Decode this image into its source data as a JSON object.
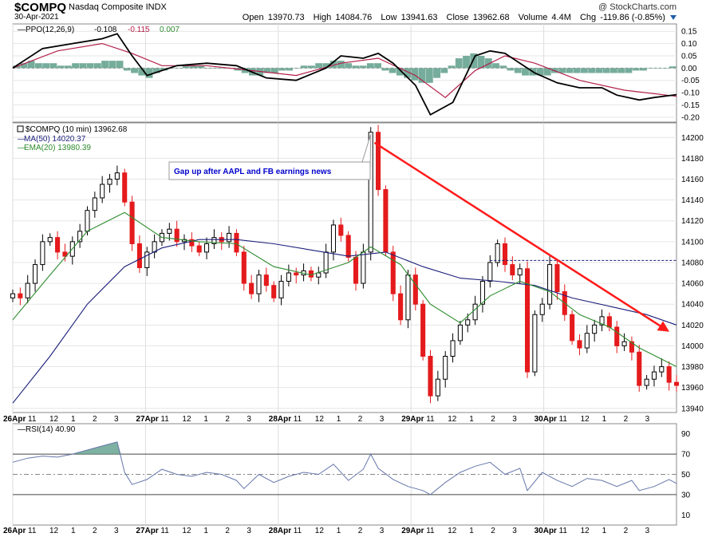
{
  "header": {
    "symbol": "$COMPQ",
    "name": "Nasdaq Composite INDX",
    "date": "30-Apr-2021",
    "credit": "@ StockCharts.com",
    "open_label": "Open",
    "open": "13970.73",
    "high_label": "High",
    "high": "14084.76",
    "low_label": "Low",
    "low": "13941.63",
    "close_label": "Close",
    "close": "13962.68",
    "volume_label": "Volume",
    "volume": "4.4M",
    "chg_label": "Chg",
    "chg": "-119.86 (-0.85%)"
  },
  "colors": {
    "up": "#000000",
    "down": "#e41a1c",
    "ma50": "#1b1f7a",
    "ema20": "#2e8b2e",
    "ppo": "#000000",
    "signal": "#b3204a",
    "hist": "#5e9e8a",
    "trend": "#ff1a1a",
    "rsi": "#6677aa",
    "rsi_fill": "#5e9e8a",
    "annotation": "#0000cc"
  },
  "chart_data": [
    {
      "type": "candlestick",
      "title": "$COMPQ (10 min) 13962.68",
      "ylim": [
        13936,
        14214
      ],
      "yticks": [
        13940,
        13960,
        13980,
        14000,
        14020,
        14040,
        14060,
        14080,
        14100,
        14120,
        14140,
        14160,
        14180,
        14200
      ],
      "y_axis": "right",
      "grid": true,
      "legend": "top-left",
      "legend_entries": [
        {
          "name": "$COMPQ (10 min) 13962.68",
          "color": "#000000"
        },
        {
          "name": "MA(50) 14020.37",
          "color": "#1b1f7a"
        },
        {
          "name": "EMA(20) 13980.39",
          "color": "#2e8b2e"
        }
      ],
      "annotation": "Gap up after AAPL and FB earnings news",
      "resistance_level": 14082,
      "x_tick_labels": [
        "26Apr",
        "11",
        "12",
        "1",
        "2",
        "3",
        "27Apr",
        "11",
        "12",
        "1",
        "2",
        "3",
        "28Apr",
        "11",
        "12",
        "1",
        "2",
        "3",
        "29Apr",
        "11",
        "12",
        "1",
        "2",
        "3",
        "30Apr",
        "11",
        "12",
        "1",
        "2",
        "3"
      ],
      "close_path": [
        {
          "t": 0,
          "v": 14050
        },
        {
          "t": 1,
          "v": 14046
        },
        {
          "t": 2,
          "v": 14060
        },
        {
          "t": 3,
          "v": 14078
        },
        {
          "t": 4,
          "v": 14100
        },
        {
          "t": 5,
          "v": 14104
        },
        {
          "t": 6,
          "v": 14090
        },
        {
          "t": 7,
          "v": 14086
        },
        {
          "t": 8,
          "v": 14100
        },
        {
          "t": 9,
          "v": 14110
        },
        {
          "t": 10,
          "v": 14130
        },
        {
          "t": 11,
          "v": 14142
        },
        {
          "t": 12,
          "v": 14155
        },
        {
          "t": 13,
          "v": 14160
        },
        {
          "t": 14,
          "v": 14166
        },
        {
          "t": 15,
          "v": 14138
        },
        {
          "t": 16,
          "v": 14098
        },
        {
          "t": 17,
          "v": 14075
        },
        {
          "t": 18,
          "v": 14090
        },
        {
          "t": 19,
          "v": 14100
        },
        {
          "t": 20,
          "v": 14108
        },
        {
          "t": 21,
          "v": 14112
        },
        {
          "t": 22,
          "v": 14100
        },
        {
          "t": 23,
          "v": 14102
        },
        {
          "t": 24,
          "v": 14096
        },
        {
          "t": 25,
          "v": 14090
        },
        {
          "t": 26,
          "v": 14098
        },
        {
          "t": 27,
          "v": 14104
        },
        {
          "t": 28,
          "v": 14100
        },
        {
          "t": 29,
          "v": 14108
        },
        {
          "t": 30,
          "v": 14090
        },
        {
          "t": 31,
          "v": 14060
        },
        {
          "t": 32,
          "v": 14050
        },
        {
          "t": 33,
          "v": 14068
        },
        {
          "t": 34,
          "v": 14058
        },
        {
          "t": 35,
          "v": 14046
        },
        {
          "t": 36,
          "v": 14062
        },
        {
          "t": 37,
          "v": 14070
        },
        {
          "t": 38,
          "v": 14068
        },
        {
          "t": 39,
          "v": 14072
        },
        {
          "t": 40,
          "v": 14066
        },
        {
          "t": 41,
          "v": 14070
        },
        {
          "t": 42,
          "v": 14090
        },
        {
          "t": 43,
          "v": 14116
        },
        {
          "t": 44,
          "v": 14106
        },
        {
          "t": 45,
          "v": 14085
        },
        {
          "t": 46,
          "v": 14060
        },
        {
          "t": 47,
          "v": 14090
        },
        {
          "t": 48,
          "v": 14205
        },
        {
          "t": 49,
          "v": 14150
        },
        {
          "t": 50,
          "v": 14090
        },
        {
          "t": 51,
          "v": 14050
        },
        {
          "t": 52,
          "v": 14025
        },
        {
          "t": 53,
          "v": 14068
        },
        {
          "t": 54,
          "v": 14040
        },
        {
          "t": 55,
          "v": 13990
        },
        {
          "t": 56,
          "v": 13952
        },
        {
          "t": 57,
          "v": 13968
        },
        {
          "t": 58,
          "v": 13990
        },
        {
          "t": 59,
          "v": 14005
        },
        {
          "t": 60,
          "v": 14020
        },
        {
          "t": 61,
          "v": 14025
        },
        {
          "t": 62,
          "v": 14040
        },
        {
          "t": 63,
          "v": 14062
        },
        {
          "t": 64,
          "v": 14080
        },
        {
          "t": 65,
          "v": 14098
        },
        {
          "t": 66,
          "v": 14078
        },
        {
          "t": 67,
          "v": 14068
        },
        {
          "t": 68,
          "v": 14074
        },
        {
          "t": 69,
          "v": 13975
        },
        {
          "t": 70,
          "v": 14030
        },
        {
          "t": 71,
          "v": 14040
        },
        {
          "t": 72,
          "v": 14078
        },
        {
          "t": 73,
          "v": 14052
        },
        {
          "t": 74,
          "v": 14030
        },
        {
          "t": 75,
          "v": 14005
        },
        {
          "t": 76,
          "v": 13998
        },
        {
          "t": 77,
          "v": 14012
        },
        {
          "t": 78,
          "v": 14020
        },
        {
          "t": 79,
          "v": 14028
        },
        {
          "t": 80,
          "v": 14018
        },
        {
          "t": 81,
          "v": 14000
        },
        {
          "t": 82,
          "v": 14004
        },
        {
          "t": 83,
          "v": 13994
        },
        {
          "t": 84,
          "v": 13962
        },
        {
          "t": 85,
          "v": 13968
        },
        {
          "t": 86,
          "v": 13975
        },
        {
          "t": 87,
          "v": 13980
        },
        {
          "t": 88,
          "v": 13965
        },
        {
          "t": 89,
          "v": 13962
        }
      ],
      "ma50_path": [
        {
          "t": 0,
          "v": 13945
        },
        {
          "t": 5,
          "v": 13990
        },
        {
          "t": 10,
          "v": 14040
        },
        {
          "t": 15,
          "v": 14076
        },
        {
          "t": 20,
          "v": 14094
        },
        {
          "t": 25,
          "v": 14102
        },
        {
          "t": 30,
          "v": 14102
        },
        {
          "t": 35,
          "v": 14098
        },
        {
          "t": 40,
          "v": 14092
        },
        {
          "t": 45,
          "v": 14086
        },
        {
          "t": 50,
          "v": 14090
        },
        {
          "t": 55,
          "v": 14076
        },
        {
          "t": 60,
          "v": 14065
        },
        {
          "t": 65,
          "v": 14062
        },
        {
          "t": 70,
          "v": 14058
        },
        {
          "t": 75,
          "v": 14046
        },
        {
          "t": 80,
          "v": 14038
        },
        {
          "t": 85,
          "v": 14030
        },
        {
          "t": 89,
          "v": 14020
        }
      ],
      "ema20_path": [
        {
          "t": 0,
          "v": 14025
        },
        {
          "t": 5,
          "v": 14068
        },
        {
          "t": 10,
          "v": 14110
        },
        {
          "t": 15,
          "v": 14128
        },
        {
          "t": 20,
          "v": 14104
        },
        {
          "t": 25,
          "v": 14100
        },
        {
          "t": 30,
          "v": 14098
        },
        {
          "t": 35,
          "v": 14076
        },
        {
          "t": 40,
          "v": 14068
        },
        {
          "t": 45,
          "v": 14080
        },
        {
          "t": 48,
          "v": 14095
        },
        {
          "t": 52,
          "v": 14078
        },
        {
          "t": 56,
          "v": 14040
        },
        {
          "t": 60,
          "v": 14022
        },
        {
          "t": 64,
          "v": 14048
        },
        {
          "t": 68,
          "v": 14062
        },
        {
          "t": 72,
          "v": 14052
        },
        {
          "t": 76,
          "v": 14030
        },
        {
          "t": 80,
          "v": 14018
        },
        {
          "t": 84,
          "v": 13998
        },
        {
          "t": 89,
          "v": 13980
        }
      ]
    },
    {
      "type": "line",
      "title": "PPO(12,26,9)",
      "legend_values": [
        {
          "value": "-0.108",
          "color": "#000000"
        },
        {
          "value": "-0.115",
          "color": "#b3204a"
        },
        {
          "value": "0.007",
          "color": "#2e8b2e"
        }
      ],
      "ylim": [
        -0.22,
        0.18
      ],
      "yticks": [
        0.15,
        0.1,
        0.05,
        0.0,
        -0.05,
        -0.1,
        -0.15,
        -0.2
      ],
      "ytick_labels": [
        "0.15",
        "0.10",
        "0.05",
        "0.00",
        "-0.05",
        "-0.10",
        "-0.15",
        "-0.20"
      ],
      "ppo_path": [
        {
          "t": 0,
          "v": 0.0
        },
        {
          "t": 4,
          "v": 0.08
        },
        {
          "t": 8,
          "v": 0.1
        },
        {
          "t": 12,
          "v": 0.12
        },
        {
          "t": 14,
          "v": 0.14
        },
        {
          "t": 16,
          "v": 0.05
        },
        {
          "t": 18,
          "v": -0.03
        },
        {
          "t": 22,
          "v": 0.01
        },
        {
          "t": 26,
          "v": 0.02
        },
        {
          "t": 30,
          "v": 0.01
        },
        {
          "t": 34,
          "v": -0.04
        },
        {
          "t": 38,
          "v": -0.05
        },
        {
          "t": 42,
          "v": 0.0
        },
        {
          "t": 44,
          "v": 0.05
        },
        {
          "t": 47,
          "v": 0.04
        },
        {
          "t": 49,
          "v": 0.06
        },
        {
          "t": 51,
          "v": 0.02
        },
        {
          "t": 54,
          "v": -0.07
        },
        {
          "t": 56,
          "v": -0.19
        },
        {
          "t": 59,
          "v": -0.14
        },
        {
          "t": 62,
          "v": 0.05
        },
        {
          "t": 64,
          "v": 0.07
        },
        {
          "t": 66,
          "v": 0.06
        },
        {
          "t": 68,
          "v": 0.02
        },
        {
          "t": 70,
          "v": -0.02
        },
        {
          "t": 73,
          "v": -0.06
        },
        {
          "t": 76,
          "v": -0.08
        },
        {
          "t": 79,
          "v": -0.08
        },
        {
          "t": 81,
          "v": -0.11
        },
        {
          "t": 84,
          "v": -0.13
        },
        {
          "t": 86,
          "v": -0.12
        },
        {
          "t": 89,
          "v": -0.108
        }
      ],
      "signal_path": [
        {
          "t": 0,
          "v": 0.0
        },
        {
          "t": 6,
          "v": 0.07
        },
        {
          "t": 12,
          "v": 0.1
        },
        {
          "t": 16,
          "v": 0.06
        },
        {
          "t": 20,
          "v": 0.01
        },
        {
          "t": 26,
          "v": 0.01
        },
        {
          "t": 32,
          "v": -0.01
        },
        {
          "t": 38,
          "v": -0.03
        },
        {
          "t": 44,
          "v": 0.02
        },
        {
          "t": 49,
          "v": 0.04
        },
        {
          "t": 54,
          "v": -0.03
        },
        {
          "t": 58,
          "v": -0.12
        },
        {
          "t": 62,
          "v": -0.01
        },
        {
          "t": 66,
          "v": 0.05
        },
        {
          "t": 70,
          "v": 0.02
        },
        {
          "t": 76,
          "v": -0.05
        },
        {
          "t": 82,
          "v": -0.09
        },
        {
          "t": 89,
          "v": -0.115
        }
      ],
      "hist_values": [
        0.01,
        0.02,
        0.03,
        0.02,
        0.02,
        0.02,
        0.01,
        0.01,
        0.02,
        0.02,
        0.02,
        0.02,
        0.03,
        0.03,
        0.03,
        -0.01,
        -0.02,
        -0.03,
        -0.04,
        -0.02,
        -0.01,
        0.0,
        0.0,
        0.01,
        0.01,
        0.01,
        0.0,
        0.0,
        0.0,
        0.0,
        -0.01,
        -0.02,
        -0.03,
        -0.03,
        -0.02,
        -0.02,
        -0.01,
        -0.01,
        0.0,
        0.01,
        0.01,
        0.02,
        0.02,
        0.03,
        0.03,
        0.02,
        0.01,
        0.01,
        0.02,
        0.02,
        -0.01,
        -0.02,
        -0.03,
        -0.04,
        -0.05,
        -0.06,
        -0.06,
        -0.04,
        -0.02,
        0.01,
        0.04,
        0.05,
        0.06,
        0.05,
        0.04,
        0.02,
        0.01,
        -0.01,
        -0.02,
        -0.03,
        -0.03,
        -0.03,
        -0.03,
        -0.02,
        -0.02,
        -0.02,
        -0.02,
        -0.02,
        -0.02,
        -0.02,
        -0.02,
        -0.02,
        -0.02,
        -0.02,
        -0.01,
        -0.01,
        0.0,
        0.0,
        0.0,
        0.007
      ]
    },
    {
      "type": "line",
      "title": "RSI(14) 40.90",
      "ylim": [
        0,
        100
      ],
      "yticks": [
        10,
        30,
        50,
        70,
        90
      ],
      "ytick_labels": [
        "10",
        "30",
        "50",
        "70",
        "90"
      ],
      "overbought": 70,
      "oversold": 30,
      "midline": 50,
      "rsi_path": [
        {
          "t": 0,
          "v": 62
        },
        {
          "t": 2,
          "v": 66
        },
        {
          "t": 4,
          "v": 68
        },
        {
          "t": 6,
          "v": 67
        },
        {
          "t": 8,
          "v": 70
        },
        {
          "t": 10,
          "v": 74
        },
        {
          "t": 12,
          "v": 78
        },
        {
          "t": 14,
          "v": 82
        },
        {
          "t": 15,
          "v": 52
        },
        {
          "t": 16,
          "v": 40
        },
        {
          "t": 18,
          "v": 45
        },
        {
          "t": 20,
          "v": 55
        },
        {
          "t": 22,
          "v": 50
        },
        {
          "t": 24,
          "v": 48
        },
        {
          "t": 26,
          "v": 52
        },
        {
          "t": 28,
          "v": 50
        },
        {
          "t": 30,
          "v": 44
        },
        {
          "t": 31,
          "v": 36
        },
        {
          "t": 33,
          "v": 50
        },
        {
          "t": 35,
          "v": 42
        },
        {
          "t": 37,
          "v": 48
        },
        {
          "t": 39,
          "v": 52
        },
        {
          "t": 41,
          "v": 50
        },
        {
          "t": 43,
          "v": 60
        },
        {
          "t": 45,
          "v": 44
        },
        {
          "t": 47,
          "v": 55
        },
        {
          "t": 48,
          "v": 70
        },
        {
          "t": 49,
          "v": 56
        },
        {
          "t": 51,
          "v": 45
        },
        {
          "t": 53,
          "v": 38
        },
        {
          "t": 55,
          "v": 34
        },
        {
          "t": 56,
          "v": 30
        },
        {
          "t": 58,
          "v": 42
        },
        {
          "t": 60,
          "v": 52
        },
        {
          "t": 62,
          "v": 58
        },
        {
          "t": 64,
          "v": 62
        },
        {
          "t": 66,
          "v": 50
        },
        {
          "t": 68,
          "v": 56
        },
        {
          "t": 69,
          "v": 34
        },
        {
          "t": 71,
          "v": 52
        },
        {
          "t": 73,
          "v": 44
        },
        {
          "t": 75,
          "v": 38
        },
        {
          "t": 77,
          "v": 46
        },
        {
          "t": 79,
          "v": 44
        },
        {
          "t": 81,
          "v": 38
        },
        {
          "t": 83,
          "v": 44
        },
        {
          "t": 84,
          "v": 34
        },
        {
          "t": 86,
          "v": 38
        },
        {
          "t": 88,
          "v": 45
        },
        {
          "t": 89,
          "v": 41
        }
      ]
    }
  ]
}
